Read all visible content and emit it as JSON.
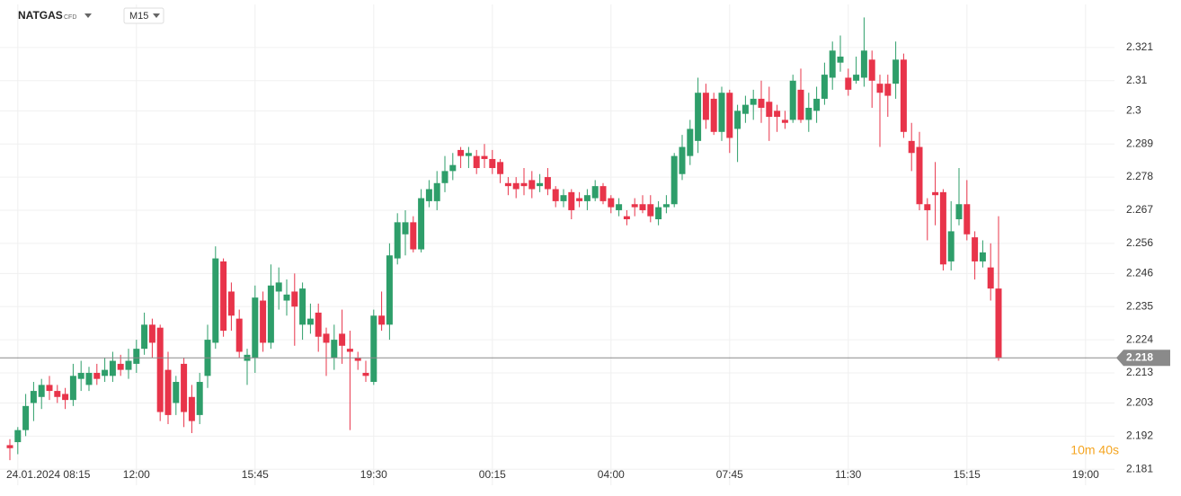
{
  "chart_data": {
    "type": "candlestick",
    "symbol": "NATGAS",
    "instrument_type": "CFD",
    "timeframe": "M15",
    "countdown": "10m 40s",
    "up_color": "#2e9e6a",
    "down_color": "#e8344a",
    "grid": true,
    "current_price": 2.218,
    "categories": [
      null,
      "24.01.2024 08:15",
      null,
      null,
      null,
      null,
      null,
      null,
      null,
      null,
      null,
      null,
      null,
      null,
      null,
      null,
      "12:00",
      null,
      null,
      null,
      null,
      null,
      null,
      null,
      null,
      null,
      null,
      null,
      null,
      null,
      null,
      "15:45",
      null,
      null,
      null,
      null,
      null,
      null,
      null,
      null,
      null,
      null,
      null,
      null,
      null,
      null,
      "19:30",
      null,
      null,
      null,
      null,
      null,
      null,
      null,
      null,
      null,
      null,
      null,
      null,
      null,
      null,
      "00:15",
      null,
      null,
      null,
      null,
      null,
      null,
      null,
      null,
      null,
      null,
      null,
      null,
      null,
      null,
      "04:00",
      null,
      null,
      null,
      null,
      null,
      null,
      null,
      null,
      null,
      null,
      null,
      null,
      null,
      null,
      "07:45",
      null,
      null,
      null,
      null,
      null,
      null,
      null,
      null,
      null,
      null,
      null,
      null,
      null,
      null,
      "11:30",
      null,
      null,
      null,
      null,
      null,
      null,
      null,
      null,
      null,
      null,
      null,
      null,
      null,
      null,
      "15:15",
      null,
      null,
      null,
      null,
      null,
      null,
      null,
      null,
      null,
      null,
      null,
      null,
      null,
      null,
      "19:00"
    ],
    "open": [
      2.189,
      2.19,
      2.194,
      2.203,
      2.205,
      2.209,
      2.207,
      2.206,
      2.204,
      2.211,
      2.209,
      2.213,
      2.212,
      2.212,
      2.216,
      2.214,
      2.216,
      2.221,
      2.229,
      2.228,
      2.214,
      2.203,
      2.216,
      2.205,
      2.199,
      2.212,
      2.223,
      2.25,
      2.24,
      2.231,
      2.217,
      2.218,
      2.237,
      2.223,
      2.24,
      2.237,
      2.24,
      2.229,
      2.229,
      2.233,
      2.226,
      2.218,
      2.226,
      2.221,
      2.218,
      2.213,
      2.21,
      2.232,
      2.229,
      2.251,
      2.259,
      2.263,
      2.254,
      2.27,
      2.27,
      2.276,
      2.28,
      2.287,
      2.285,
      2.285,
      2.285,
      2.284,
      2.283,
      2.276,
      2.276,
      2.276,
      2.277,
      2.275,
      2.278,
      2.274,
      2.27,
      2.273,
      2.271,
      2.27,
      2.271,
      2.275,
      2.271,
      2.267,
      2.265,
      2.269,
      2.269,
      2.269,
      2.264,
      2.268,
      2.269,
      2.279,
      2.285,
      2.29,
      2.306,
      2.304,
      2.293,
      2.306,
      2.294,
      2.299,
      2.302,
      2.304,
      2.303,
      2.3,
      2.297,
      2.297,
      2.307,
      2.297,
      2.3,
      2.304,
      2.311,
      2.316,
      2.311,
      2.31,
      2.311,
      2.317,
      2.309,
      2.309,
      2.309,
      2.317,
      2.29,
      2.288,
      2.269,
      2.273,
      2.273,
      2.25,
      2.264,
      2.269,
      2.258,
      2.25,
      2.248,
      2.241,
      null,
      null,
      null,
      null,
      null,
      null,
      null,
      null,
      null,
      null,
      null
    ],
    "high": [
      2.191,
      2.195,
      2.206,
      2.21,
      2.211,
      2.212,
      2.209,
      2.208,
      2.216,
      2.217,
      2.215,
      2.216,
      2.218,
      2.22,
      2.219,
      2.221,
      2.224,
      2.233,
      2.231,
      2.229,
      2.22,
      2.212,
      2.218,
      2.209,
      2.213,
      2.229,
      2.255,
      2.251,
      2.243,
      2.234,
      2.221,
      2.242,
      2.24,
      2.249,
      2.248,
      2.244,
      2.246,
      2.243,
      2.236,
      2.236,
      2.228,
      2.229,
      2.234,
      2.227,
      2.22,
      2.217,
      2.234,
      2.24,
      2.256,
      2.266,
      2.267,
      2.265,
      2.274,
      2.277,
      2.28,
      2.285,
      2.286,
      2.288,
      2.288,
      2.287,
      2.289,
      2.287,
      2.284,
      2.278,
      2.278,
      2.281,
      2.28,
      2.279,
      2.281,
      2.275,
      2.274,
      2.274,
      2.273,
      2.274,
      2.277,
      2.276,
      2.272,
      2.271,
      2.267,
      2.271,
      2.272,
      2.272,
      2.27,
      2.272,
      2.286,
      2.292,
      2.297,
      2.311,
      2.309,
      2.306,
      2.308,
      2.307,
      2.302,
      2.305,
      2.307,
      2.31,
      2.308,
      2.302,
      2.3,
      2.312,
      2.314,
      2.306,
      2.308,
      2.316,
      2.323,
      2.325,
      2.314,
      2.318,
      2.331,
      2.32,
      2.312,
      2.312,
      2.323,
      2.319,
      2.296,
      2.293,
      2.271,
      2.283,
      2.274,
      2.27,
      2.281,
      2.277,
      2.26,
      2.257,
      2.256,
      2.265,
      null,
      null,
      null,
      null,
      null,
      null,
      null,
      null,
      null,
      null,
      null
    ],
    "low": [
      2.184,
      2.186,
      2.192,
      2.197,
      2.201,
      2.204,
      2.203,
      2.201,
      2.202,
      2.207,
      2.207,
      2.209,
      2.21,
      2.21,
      2.212,
      2.211,
      2.213,
      2.219,
      2.218,
      2.197,
      2.196,
      2.199,
      2.195,
      2.193,
      2.196,
      2.208,
      2.221,
      2.225,
      2.227,
      2.218,
      2.209,
      2.213,
      2.22,
      2.221,
      2.234,
      2.232,
      2.222,
      2.224,
      2.226,
      2.22,
      2.212,
      2.214,
      2.216,
      2.194,
      2.214,
      2.21,
      2.209,
      2.227,
      2.224,
      2.249,
      2.252,
      2.253,
      2.253,
      2.268,
      2.267,
      2.273,
      2.277,
      2.281,
      2.281,
      2.279,
      2.281,
      2.279,
      2.276,
      2.272,
      2.271,
      2.272,
      2.271,
      2.273,
      2.272,
      2.268,
      2.268,
      2.264,
      2.268,
      2.267,
      2.27,
      2.269,
      2.266,
      2.265,
      2.262,
      2.265,
      2.266,
      2.263,
      2.262,
      2.266,
      2.268,
      2.277,
      2.282,
      2.286,
      2.294,
      2.292,
      2.29,
      2.286,
      2.283,
      2.296,
      2.297,
      2.296,
      2.29,
      2.293,
      2.294,
      2.296,
      2.296,
      2.293,
      2.296,
      2.302,
      2.307,
      2.313,
      2.305,
      2.309,
      2.308,
      2.301,
      2.288,
      2.298,
      2.304,
      2.291,
      2.28,
      2.267,
      2.257,
      2.262,
      2.247,
      2.247,
      2.262,
      2.257,
      2.244,
      2.248,
      2.237,
      2.217,
      null,
      null,
      null,
      null,
      null,
      null,
      null,
      null,
      null,
      null,
      null
    ],
    "close": [
      2.188,
      2.194,
      2.202,
      2.207,
      2.209,
      2.207,
      2.205,
      2.204,
      2.212,
      2.213,
      2.213,
      2.211,
      2.214,
      2.217,
      2.214,
      2.217,
      2.221,
      2.229,
      2.223,
      2.2,
      2.199,
      2.21,
      2.2,
      2.197,
      2.21,
      2.224,
      2.251,
      2.227,
      2.232,
      2.22,
      2.219,
      2.238,
      2.223,
      2.242,
      2.243,
      2.239,
      2.235,
      2.241,
      2.231,
      2.225,
      2.223,
      2.224,
      2.222,
      2.22,
      2.217,
      2.212,
      2.232,
      2.229,
      2.252,
      2.263,
      2.263,
      2.254,
      2.271,
      2.274,
      2.276,
      2.28,
      2.282,
      2.285,
      2.286,
      2.281,
      2.284,
      2.281,
      2.279,
      2.275,
      2.274,
      2.275,
      2.274,
      2.276,
      2.274,
      2.27,
      2.272,
      2.267,
      2.27,
      2.272,
      2.275,
      2.27,
      2.268,
      2.269,
      2.264,
      2.268,
      2.267,
      2.265,
      2.268,
      2.269,
      2.285,
      2.288,
      2.294,
      2.306,
      2.297,
      2.293,
      2.306,
      2.291,
      2.3,
      2.302,
      2.304,
      2.301,
      2.298,
      2.298,
      2.296,
      2.31,
      2.297,
      2.301,
      2.304,
      2.312,
      2.32,
      2.318,
      2.307,
      2.312,
      2.32,
      2.31,
      2.306,
      2.305,
      2.317,
      2.293,
      2.286,
      2.269,
      2.267,
      2.272,
      2.249,
      2.26,
      2.269,
      2.259,
      2.25,
      2.253,
      2.241,
      2.218,
      null,
      null,
      null,
      null,
      null,
      null,
      null,
      null,
      null,
      null,
      null
    ],
    "ylim": [
      2.1757,
      2.3353
    ],
    "yticks": [
      2.181,
      2.192,
      2.203,
      2.213,
      2.224,
      2.235,
      2.246,
      2.256,
      2.267,
      2.278,
      2.289,
      2.3,
      2.31,
      2.321
    ]
  }
}
